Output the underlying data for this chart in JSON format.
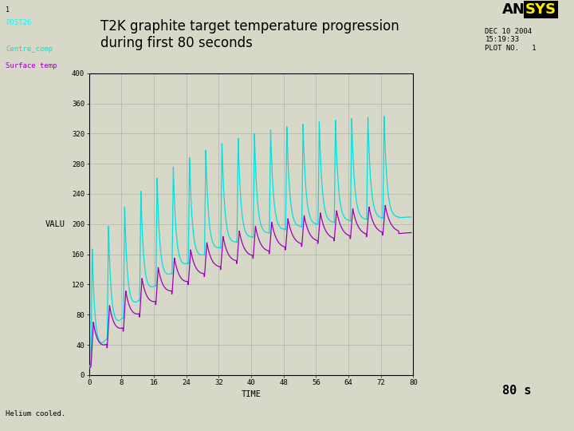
{
  "title_line1": "T2K graphite target temperature progression",
  "title_line2": "during first 80 seconds",
  "xlabel": "TIME",
  "ylabel": "VALU",
  "xlim": [
    0,
    80
  ],
  "ylim": [
    0,
    400
  ],
  "xticks": [
    0,
    8,
    16,
    24,
    32,
    40,
    48,
    56,
    64,
    72,
    80
  ],
  "xtick_labels": [
    "0",
    "8",
    "16",
    "24",
    "32",
    "40",
    "48",
    "56",
    "64",
    "72",
    "80"
  ],
  "yticks": [
    0,
    40,
    80,
    120,
    160,
    200,
    240,
    280,
    320,
    360,
    400
  ],
  "ytick_labels": [
    "0",
    "40",
    "80",
    "120",
    "160",
    "200",
    "240",
    "280",
    "320",
    "360",
    "400"
  ],
  "bg_color": "#d8d8c8",
  "plot_bg": "#d8d8c8",
  "centre_color": "#00e0e0",
  "surface_color": "#9900bb",
  "grid_color": "#b0b0b0",
  "post_text": "POST26",
  "legend_centre": "Centre_comp",
  "legend_surface": "Surface temp",
  "bottom_text": "Helium cooled.",
  "label1": "1",
  "n_pulses": 19,
  "pulse_period": 4.0,
  "first_pulse": 0.5,
  "dt": 0.01,
  "total_time": 79.5
}
